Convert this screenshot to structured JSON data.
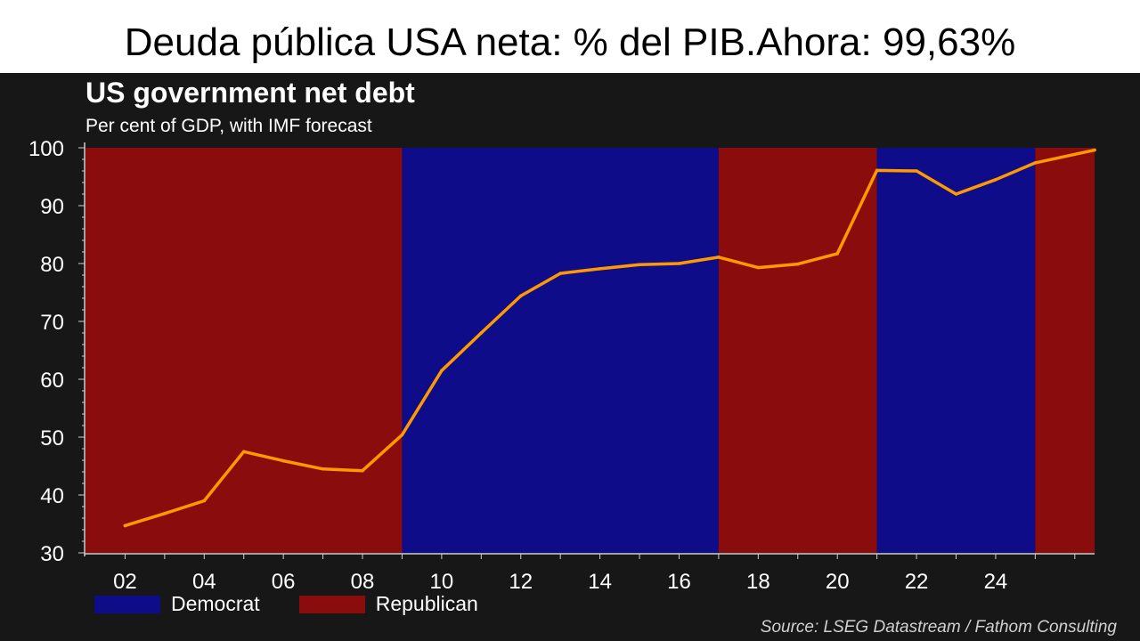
{
  "slide_title": "Deuda pública USA neta: % del PIB.Ahora: 99,63%",
  "chart_data": {
    "type": "line",
    "title": "US government net debt",
    "subtitle": "Per cent of GDP, with IMF forecast",
    "source": "Source: LSEG Datastream / Fathom Consulting",
    "xlabel": "",
    "ylabel": "",
    "ylim": [
      30,
      100
    ],
    "yticks": [
      30,
      40,
      50,
      60,
      70,
      80,
      90,
      100
    ],
    "xlim": [
      2001,
      2026.5
    ],
    "xticks": [
      2002,
      2004,
      2006,
      2008,
      2010,
      2012,
      2014,
      2016,
      2018,
      2020,
      2022,
      2024
    ],
    "xtick_labels": [
      "02",
      "04",
      "06",
      "08",
      "10",
      "12",
      "14",
      "16",
      "18",
      "20",
      "22",
      "24"
    ],
    "grid": false,
    "legend": "bottom-left",
    "colors": {
      "line": "#ff9900",
      "democrat": "#0e0c88",
      "republican": "#8a0c0c",
      "background": "#171717",
      "text": "#ffffff"
    },
    "series": [
      {
        "x": [
          2002,
          2003,
          2004,
          2005,
          2006,
          2007,
          2008,
          2009,
          2010,
          2011,
          2012,
          2013,
          2014,
          2015,
          2016,
          2017,
          2018,
          2019,
          2020,
          2021,
          2022,
          2023,
          2024,
          2025,
          2026.5
        ],
        "values": [
          34.7,
          36.8,
          39.0,
          47.5,
          45.9,
          44.5,
          44.2,
          50.4,
          61.5,
          68.0,
          74.4,
          78.3,
          79.1,
          79.8,
          80.0,
          81.1,
          79.3,
          79.9,
          81.7,
          96.1,
          96.0,
          92.0,
          94.5,
          97.4,
          99.6
        ]
      }
    ],
    "periods": [
      {
        "party": "Republican",
        "start": 2001,
        "end": 2009
      },
      {
        "party": "Democrat",
        "start": 2009,
        "end": 2017
      },
      {
        "party": "Republican",
        "start": 2017,
        "end": 2021
      },
      {
        "party": "Democrat",
        "start": 2021,
        "end": 2025
      },
      {
        "party": "Republican",
        "start": 2025,
        "end": 2026.5
      }
    ],
    "legend_items": [
      {
        "label": "Democrat",
        "party": "Democrat"
      },
      {
        "label": "Republican",
        "party": "Republican"
      }
    ]
  }
}
